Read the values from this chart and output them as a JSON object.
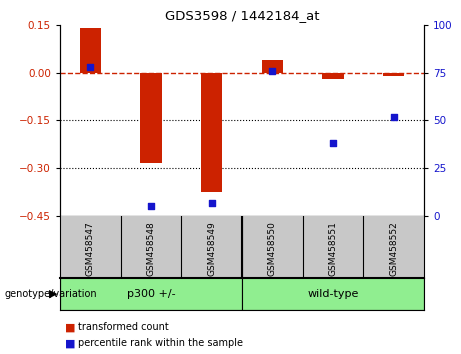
{
  "title": "GDS3598 / 1442184_at",
  "samples": [
    "GSM458547",
    "GSM458548",
    "GSM458549",
    "GSM458550",
    "GSM458551",
    "GSM458552"
  ],
  "transformed_counts": [
    0.14,
    -0.285,
    -0.375,
    0.04,
    -0.02,
    -0.01
  ],
  "percentile_ranks": [
    78,
    5,
    7,
    76,
    38,
    52
  ],
  "group_label_prefix": "genotype/variation",
  "groups": [
    {
      "label": "p300 +/-",
      "start": 0,
      "end": 3
    },
    {
      "label": "wild-type",
      "start": 3,
      "end": 6
    }
  ],
  "ylim_left": [
    -0.45,
    0.15
  ],
  "ylim_right": [
    0,
    100
  ],
  "yticks_left": [
    -0.45,
    -0.3,
    -0.15,
    0.0,
    0.15
  ],
  "yticks_right": [
    0,
    25,
    50,
    75,
    100
  ],
  "bar_color": "#CC2200",
  "dot_color": "#1515CC",
  "dotted_lines": [
    -0.15,
    -0.3
  ],
  "bar_width": 0.35,
  "legend_items": [
    {
      "label": "transformed count",
      "color": "#CC2200"
    },
    {
      "label": "percentile rank within the sample",
      "color": "#1515CC"
    }
  ],
  "sample_area_color": "#C8C8C8",
  "group_area_color": "#90EE90"
}
